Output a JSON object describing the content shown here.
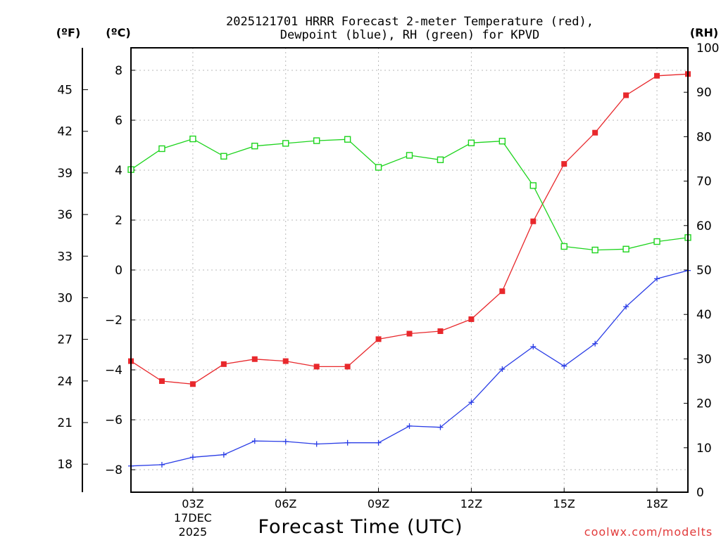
{
  "chart_data": {
    "type": "line",
    "title_line1": "2025121701 HRRR Forecast 2-meter Temperature (red),",
    "title_line2": "Dewpoint (blue), RH (green) for KPVD",
    "xlabel": "Forecast Time (UTC)",
    "unit_labels": {
      "fahrenheit": "(ºF)",
      "celsius": "(ºC)",
      "rh": "(RH)"
    },
    "hours": [
      1,
      2,
      3,
      4,
      5,
      6,
      7,
      8,
      9,
      10,
      11,
      12,
      13,
      14,
      15,
      16,
      17,
      18,
      19
    ],
    "x_ticks": [
      {
        "hour": 3,
        "label": "03Z",
        "sub1": "17DEC",
        "sub2": "2025"
      },
      {
        "hour": 6,
        "label": "06Z"
      },
      {
        "hour": 9,
        "label": "09Z"
      },
      {
        "hour": 12,
        "label": "12Z"
      },
      {
        "hour": 15,
        "label": "15Z"
      },
      {
        "hour": 18,
        "label": "18Z"
      }
    ],
    "celsius_axis": {
      "range": [
        -8.9,
        8.9
      ],
      "ticks": [
        "8",
        "6",
        "4",
        "2",
        "0",
        "−2",
        "−4",
        "−6",
        "−8"
      ],
      "tick_values": [
        8,
        6,
        4,
        2,
        0,
        -2,
        -4,
        -6,
        -8
      ]
    },
    "fahrenheit_ticks": [
      "45",
      "42",
      "39",
      "36",
      "33",
      "30",
      "27",
      "24",
      "21",
      "18"
    ],
    "fahrenheit_tick_values": [
      45,
      42,
      39,
      36,
      33,
      30,
      27,
      24,
      21,
      18
    ],
    "rh_axis": {
      "range": [
        0,
        100
      ],
      "ticks": [
        "100",
        "90",
        "80",
        "70",
        "60",
        "50",
        "40",
        "30",
        "20",
        "10",
        "0"
      ],
      "tick_values": [
        100,
        90,
        80,
        70,
        60,
        50,
        40,
        30,
        20,
        10,
        0
      ]
    },
    "series": [
      {
        "name": "Temperature",
        "color": "#e8282c",
        "marker": "filled-square",
        "axis": "celsius",
        "values": [
          -3.65,
          -4.45,
          -4.57,
          -3.77,
          -3.57,
          -3.65,
          -3.87,
          -3.87,
          -2.77,
          -2.55,
          -2.45,
          -1.97,
          -0.85,
          1.95,
          4.25,
          5.5,
          7.0,
          7.78,
          7.85
        ]
      },
      {
        "name": "Dewpoint",
        "color": "#2a3de6",
        "marker": "plus",
        "axis": "celsius",
        "values": [
          -7.85,
          -7.8,
          -7.5,
          -7.4,
          -6.85,
          -6.87,
          -6.97,
          -6.92,
          -6.92,
          -6.25,
          -6.3,
          -5.3,
          -3.97,
          -3.07,
          -3.85,
          -2.95,
          -1.47,
          -0.35,
          -0.02
        ]
      },
      {
        "name": "RH",
        "color": "#1ed41e",
        "marker": "open-square",
        "axis": "rh",
        "values": [
          72.6,
          77.3,
          79.5,
          75.6,
          77.9,
          78.5,
          79.1,
          79.4,
          73.1,
          75.8,
          74.8,
          78.6,
          79.0,
          69.0,
          55.3,
          54.5,
          54.7,
          56.4,
          57.3
        ]
      }
    ],
    "credit": "coolwx.com/modelts"
  }
}
